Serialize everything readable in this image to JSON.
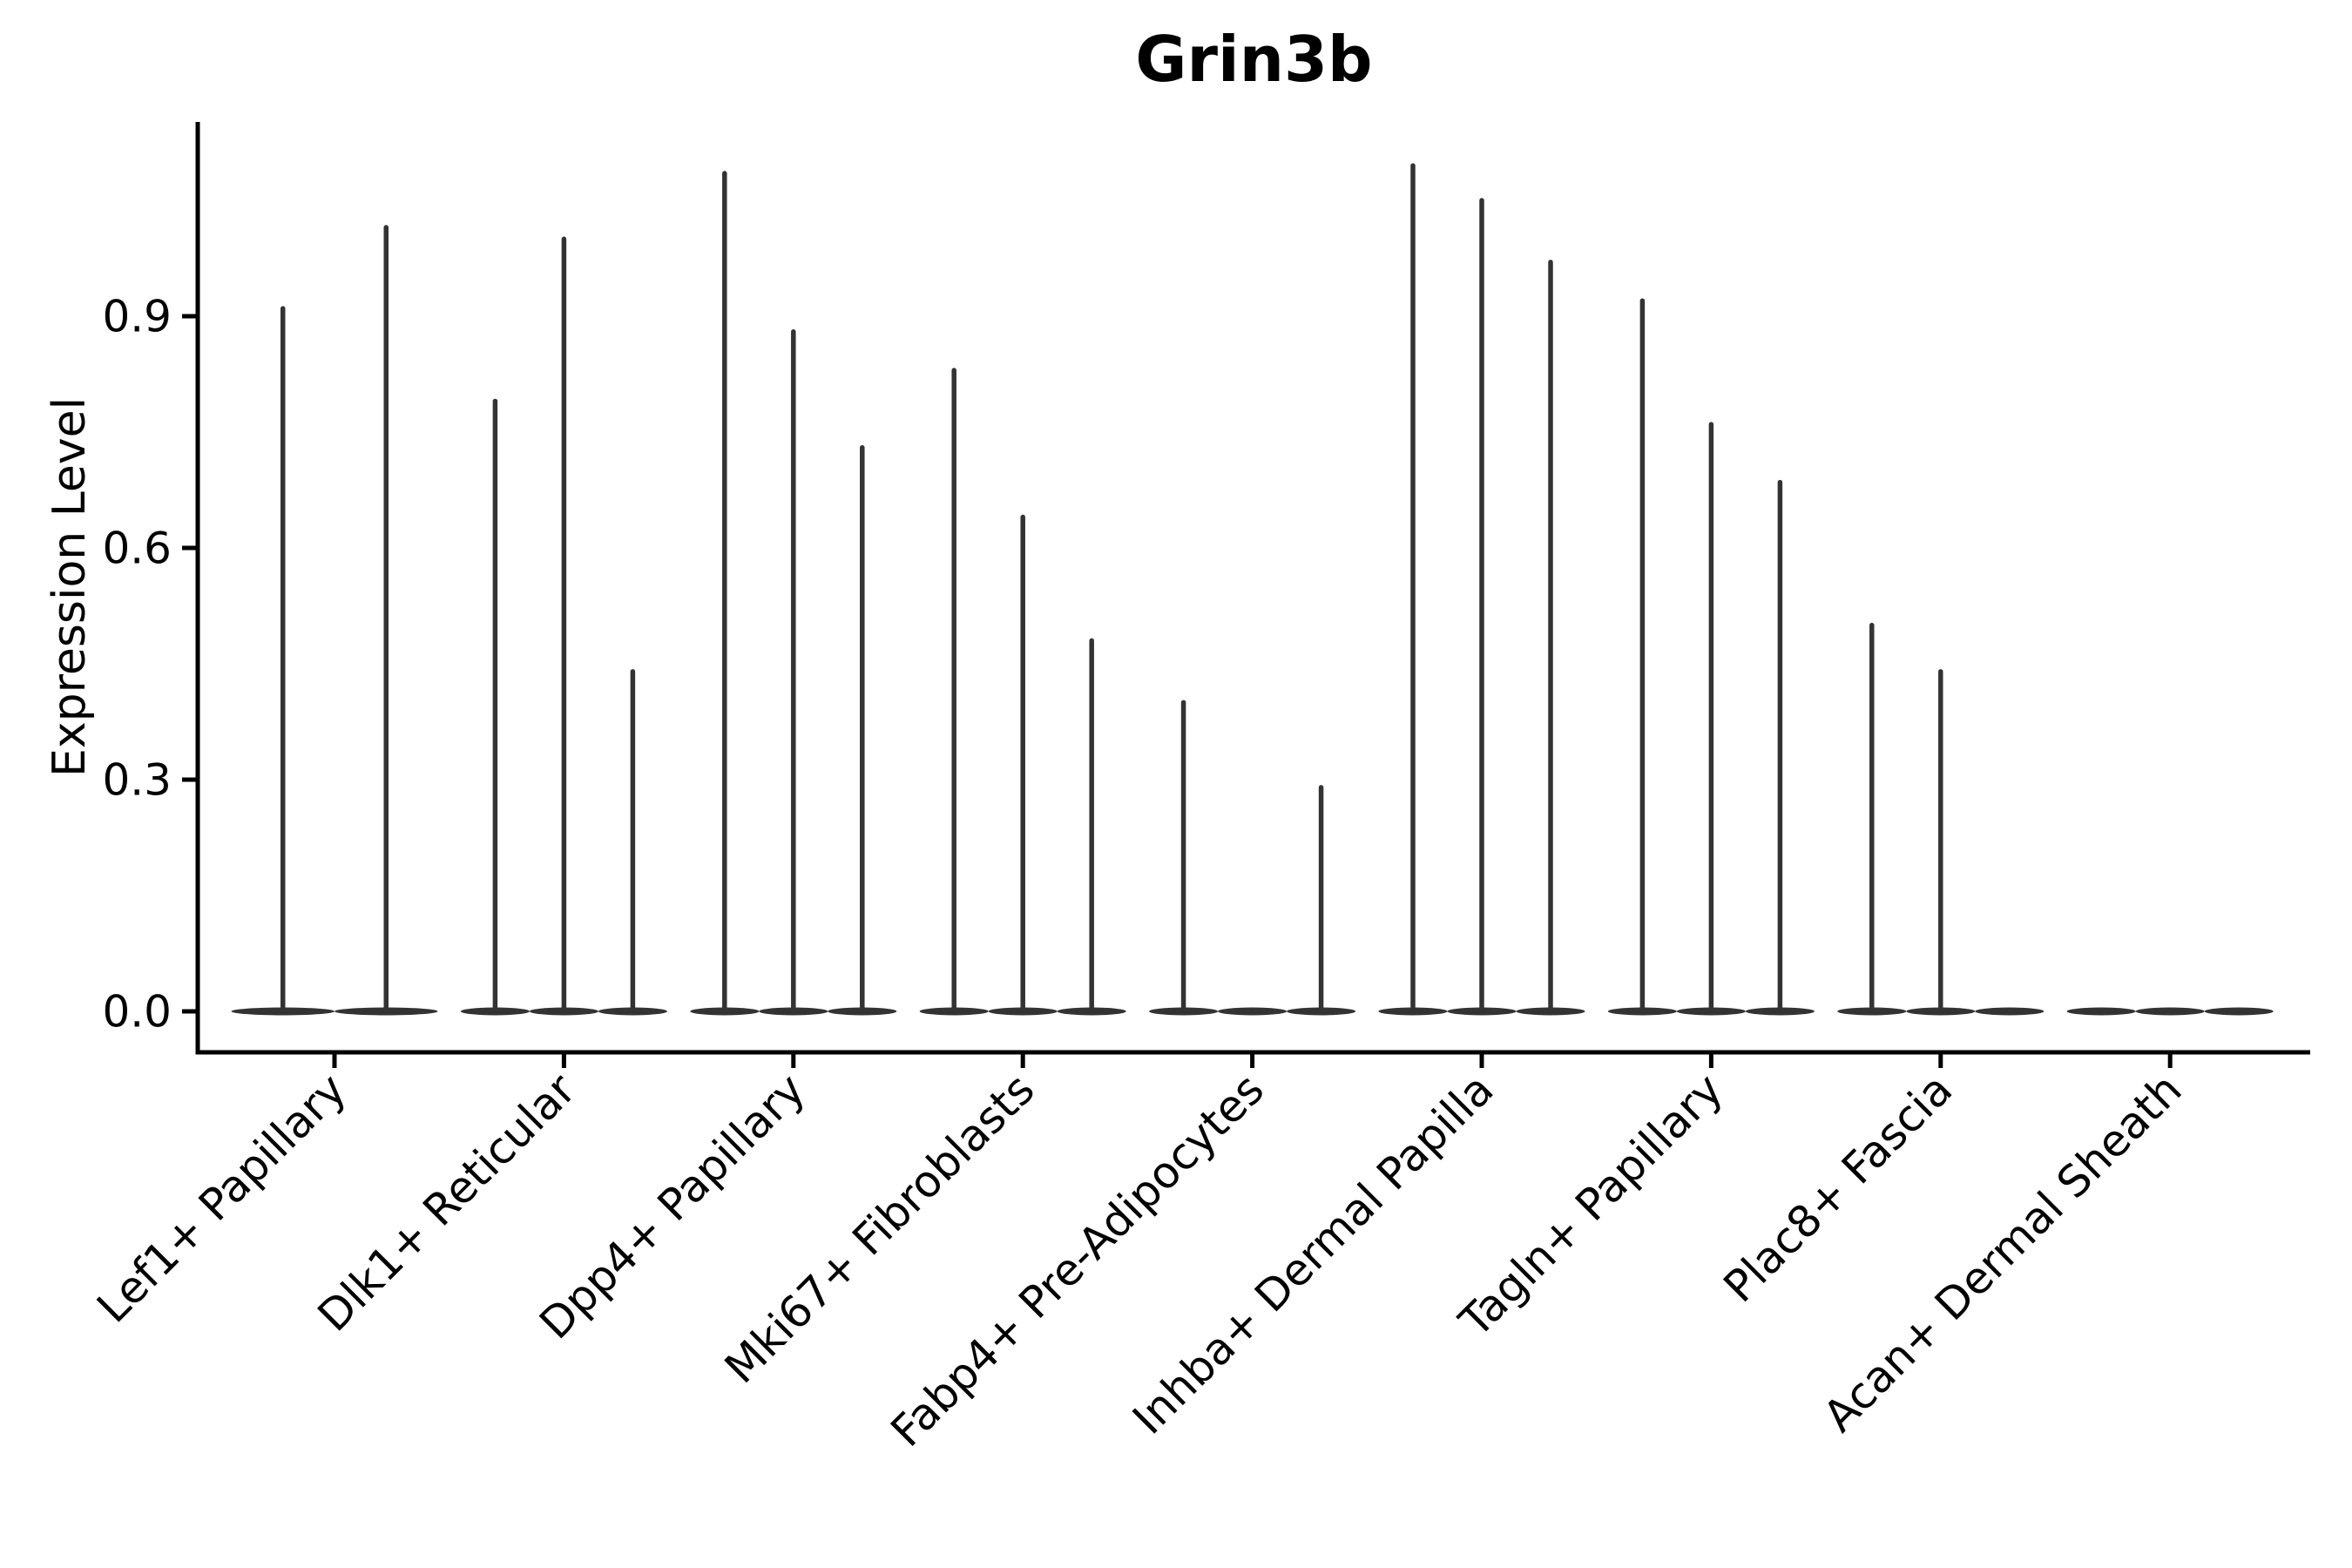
{
  "chart_data": {
    "type": "violin",
    "title": "Grin3b",
    "ylabel": "Expression Level",
    "xlabel": "",
    "yticks": [
      0.0,
      0.3,
      0.6,
      0.9
    ],
    "ytick_labels": [
      "0.0",
      "0.3",
      "0.6",
      "0.9"
    ],
    "ylim": [
      -0.05,
      1.15
    ],
    "grid": false,
    "legend": "none",
    "categories": [
      "Lef1+ Papillary",
      "Dlk1+ Reticular",
      "Dpp4+ Papillary",
      "Mki67+ Fibroblasts",
      "Fabp4+ Pre-Adipocytes",
      "Inhba+ Dermal Papilla",
      "Tagln+ Papillary",
      "Plac8+ Fascia",
      "Acan+ Dermal Sheath"
    ],
    "groups": [
      {
        "label": "Lef1+ Papillary",
        "violin_maxes": [
          0.91,
          1.015
        ]
      },
      {
        "label": "Dlk1+ Reticular",
        "violin_maxes": [
          0.79,
          1.0,
          0.44
        ]
      },
      {
        "label": "Dpp4+ Papillary",
        "violin_maxes": [
          1.085,
          0.88,
          0.73
        ]
      },
      {
        "label": "Mki67+ Fibroblasts",
        "violin_maxes": [
          0.83,
          0.64,
          0.48
        ]
      },
      {
        "label": "Fabp4+ Pre-Adipocytes",
        "violin_maxes": [
          0.4,
          0.0,
          0.29
        ]
      },
      {
        "label": "Inhba+ Dermal Papilla",
        "violin_maxes": [
          1.095,
          1.05,
          0.97
        ]
      },
      {
        "label": "Tagln+ Papillary",
        "violin_maxes": [
          0.92,
          0.76,
          0.685
        ]
      },
      {
        "label": "Plac8+ Fascia",
        "violin_maxes": [
          0.5,
          0.44,
          0.0
        ]
      },
      {
        "label": "Acan+ Dermal Sheath",
        "violin_maxes": [
          0.0,
          0.0,
          0.0
        ]
      }
    ],
    "violin_description": "Each group shows narrow spike violins rising from a flat dense base at expression 0; maxes of 0 mean a completely flat violin.",
    "colors": {
      "violin": "#333333",
      "axis": "#000000",
      "text": "#000000",
      "background": "#ffffff"
    }
  }
}
